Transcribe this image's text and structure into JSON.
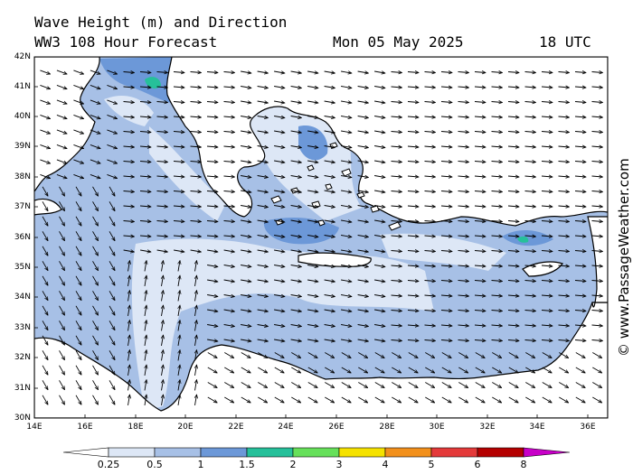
{
  "header": {
    "title": "Wave Height (m) and Direction",
    "model": "WW3 108 Hour Forecast",
    "date": "Mon 05 May 2025",
    "time": "18 UTC"
  },
  "watermark": "© www.PassageWeather.com",
  "axes": {
    "lat_labels": [
      "42N",
      "41N",
      "40N",
      "39N",
      "38N",
      "37N",
      "36N",
      "35N",
      "34N",
      "33N",
      "32N",
      "31N",
      "30N"
    ],
    "lon_labels": [
      "14E",
      "16E",
      "18E",
      "20E",
      "22E",
      "24E",
      "26E",
      "28E",
      "30E",
      "32E",
      "34E",
      "36E"
    ]
  },
  "colorbar": {
    "labels": [
      "0.25",
      "0.5",
      "1",
      "1.5",
      "2",
      "3",
      "4",
      "5",
      "6",
      "8"
    ],
    "colors": [
      "#ffffff",
      "#dde7f6",
      "#a7c0e6",
      "#6c98d8",
      "#26c09a",
      "#66e05a",
      "#f5e200",
      "#f2901c",
      "#e43a3a",
      "#b40000",
      "#c800c8"
    ]
  },
  "map_colors": {
    "sea_low": "#dde7f6",
    "sea_mid": "#a7c0e6",
    "sea_high": "#6c98d8",
    "sea_peak": "#26c09a",
    "land": "#ffffff"
  }
}
